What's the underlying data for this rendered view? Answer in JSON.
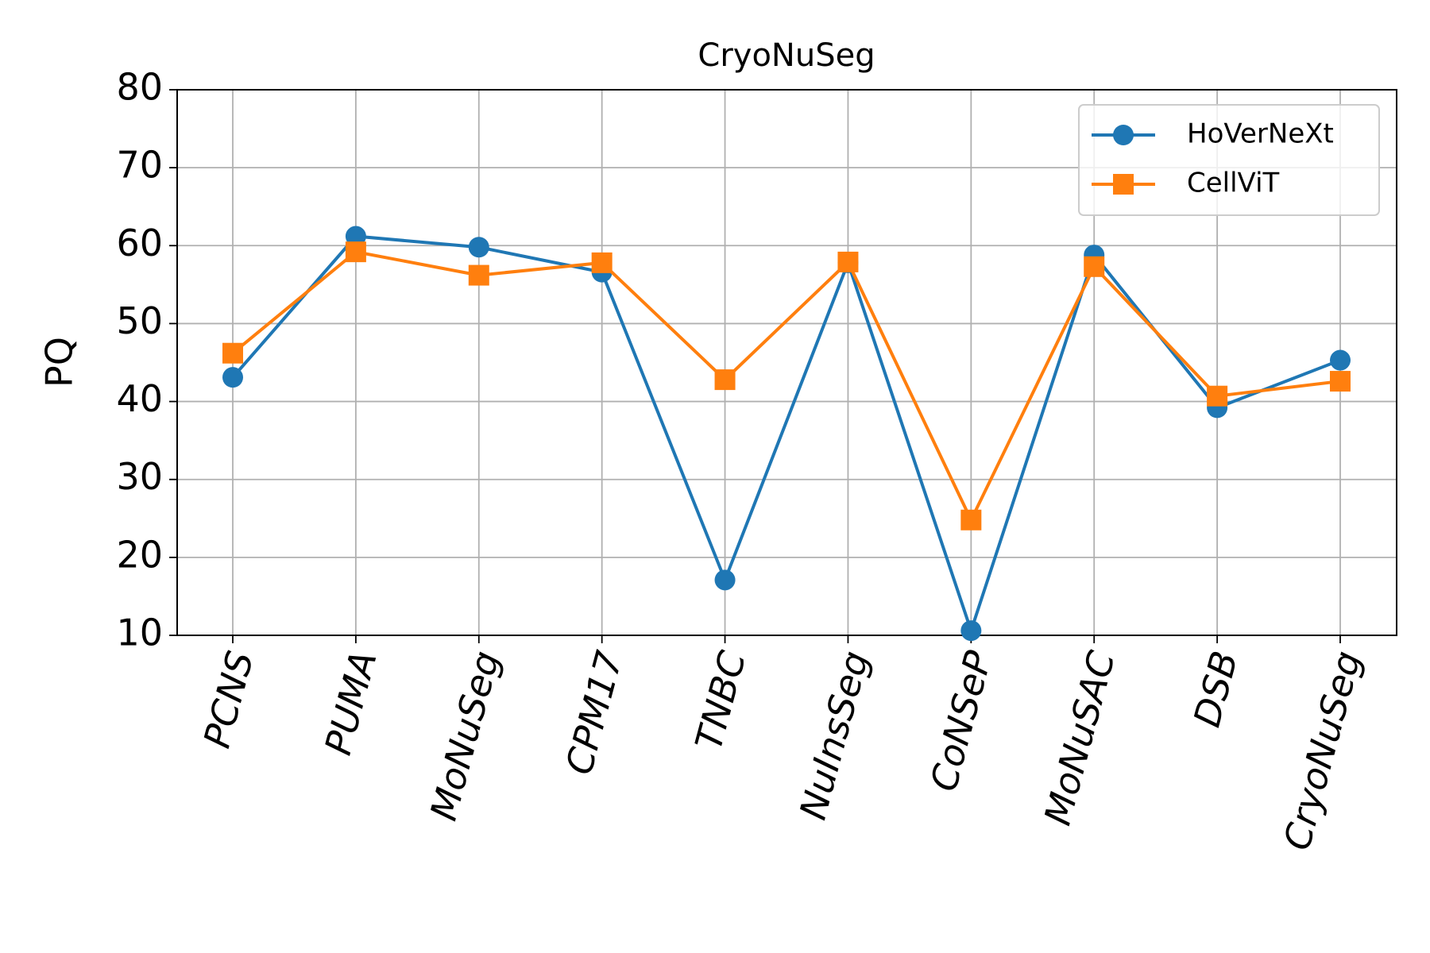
{
  "chart_data": {
    "type": "line",
    "title": "CryoNuSeg",
    "y_label": "PQ",
    "categories": [
      "PCNS",
      "PUMA",
      "MoNuSeg",
      "CPM17",
      "TNBC",
      "NuInsSeg",
      "CoNSeP",
      "MoNuSAC",
      "DSB",
      "CryoNuSeg"
    ],
    "series": [
      {
        "name": "HoVerNeXt",
        "color": "#1f77b4",
        "marker": "circle",
        "values": [
          43.1,
          61.2,
          59.8,
          56.6,
          17.1,
          57.8,
          10.6,
          58.8,
          39.2,
          45.3
        ]
      },
      {
        "name": "CellViT",
        "color": "#ff7f0e",
        "marker": "square",
        "values": [
          46.2,
          59.2,
          56.2,
          57.8,
          42.8,
          57.9,
          24.8,
          57.3,
          40.7,
          42.6
        ]
      }
    ],
    "ylim": [
      10,
      80
    ],
    "yticks": [
      10,
      20,
      30,
      40,
      50,
      60,
      70,
      80
    ],
    "grid": true,
    "legend": "upper right"
  }
}
